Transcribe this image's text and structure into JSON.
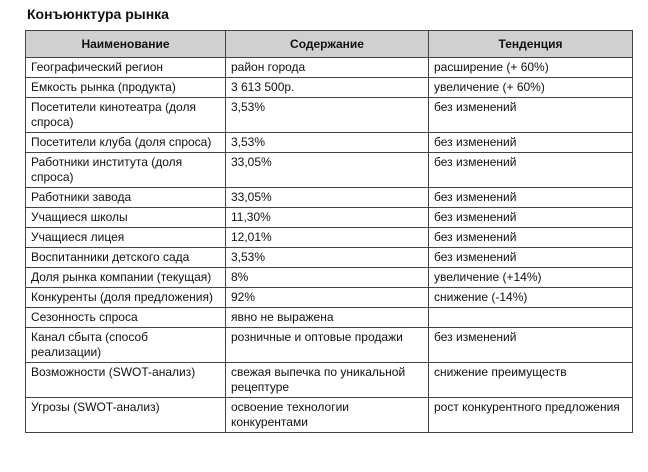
{
  "header": {
    "title": "Конъюнктура рынка"
  },
  "table": {
    "columns": [
      "Наименование",
      "Содержание",
      "Тенденция"
    ],
    "rows": [
      [
        "Географический регион",
        "район города",
        "расширение (+ 60%)"
      ],
      [
        "Емкость рынка (продукта)",
        "3 613 500р.",
        "увеличение (+ 60%)"
      ],
      [
        "Посетители кинотеатра (доля спроса)",
        "3,53%",
        "без изменений"
      ],
      [
        "Посетители клуба (доля спроса)",
        "3,53%",
        "без изменений"
      ],
      [
        "Работники института (доля спроса)",
        "33,05%",
        "без изменений"
      ],
      [
        "Работники завода",
        "33,05%",
        "без изменений"
      ],
      [
        "Учащиеся школы",
        "11,30%",
        "без изменений"
      ],
      [
        "Учащиеся лицея",
        "12,01%",
        "без изменений"
      ],
      [
        "Воспитанники детского сада",
        "3,53%",
        "без изменений"
      ],
      [
        "Доля рынка компании (текущая)",
        "8%",
        "увеличение (+14%)"
      ],
      [
        "Конкуренты (доля предложения)",
        "92%",
        "снижение (-14%)"
      ],
      [
        "Сезонность спроса",
        "явно не выражена"
      ],
      [
        "Канал сбыта (способ реализации)",
        "розничные и оптовые продажи",
        "без изменений"
      ],
      [
        "Возможности (SWOT-анализ)",
        "свежая выпечка по уникальной рецептуре",
        "снижение преимуществ"
      ],
      [
        "Угрозы (SWOT-анализ)",
        "освоение технологии конкурентами",
        "рост конкурентного предложения"
      ]
    ]
  }
}
